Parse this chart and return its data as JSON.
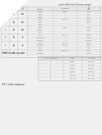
{
  "title": "with different Sweep angle",
  "label1": "FINSET3 data comparison",
  "label2": "FIG: 1.2 data comparison",
  "main_table": {
    "col_headers": [
      "",
      "",
      "Ω",
      "Ω/Sspan",
      "CHORD KL2",
      "X.E"
    ],
    "cases": [
      {
        "id": "1",
        "om1": "90",
        "om2": "180",
        "rows": [
          [
            "0.328",
            "0.5000",
            "1.0000"
          ],
          [
            "0.756",
            "0",
            "0.216"
          ],
          [
            "0.7562",
            "0",
            "0.216"
          ]
        ]
      },
      {
        "id": "2",
        "om1": "90",
        "om2": "160",
        "rows": [
          [
            "0.328",
            "0.10.921",
            "0.0000"
          ],
          [
            "0.634",
            "",
            "0.1050"
          ],
          [
            "0.534",
            "",
            ""
          ]
        ]
      },
      {
        "id": "3",
        "om1": "90",
        "om2": "150",
        "rows": [
          [
            "0.328",
            "0.5000",
            "1.0000"
          ],
          [
            "0.6000",
            "",
            "0.109"
          ],
          [
            "0.14",
            "",
            ""
          ]
        ]
      },
      {
        "id": "4",
        "om1": "90",
        "om2": "80",
        "rows": [
          [
            "0.328",
            "0.11.114",
            "0.0077"
          ],
          [
            "0.46.11.114",
            "0",
            "0.0041"
          ],
          [
            "0.000001",
            "0",
            "0.070360"
          ]
        ]
      },
      {
        "id": "5",
        "om1": "90",
        "om2": "80",
        "rows": [
          [
            "0.328",
            "0.17.046",
            "0.0070"
          ],
          [
            "0.14.5040",
            "0.17.046",
            "0.0041"
          ],
          [
            "0.0.15",
            "",
            "0.15"
          ]
        ]
      },
      {
        "id": "6",
        "om1": "90",
        "om2": "40",
        "rows": [
          [
            "0.328",
            "0.0000601",
            "0.1000"
          ],
          [
            "0.14.5040",
            "",
            "0.1.1.60"
          ],
          [
            "",
            "",
            ""
          ]
        ]
      }
    ]
  },
  "second_table": {
    "headers": [
      "Physical sweep angle",
      "CNR",
      "CNL alpha"
    ],
    "rows": [
      [
        "90",
        "0.018614",
        "0.17.0048"
      ],
      [
        "80",
        "0.014515",
        "0.0.000803"
      ],
      [
        "70",
        "0.001441",
        "0.20.001.1"
      ],
      [
        "60",
        "0.000014",
        "0.20.001.1"
      ],
      [
        "50",
        "0.0.000691",
        "0.0.000693"
      ],
      [
        "40",
        "0.0.000004",
        "0.0.0000004"
      ]
    ]
  },
  "bg_color": "#f0f0f0",
  "table_bg": "#ffffff",
  "text_color": "#222222",
  "line_color": "#aaaaaa",
  "title_color": "#444444"
}
